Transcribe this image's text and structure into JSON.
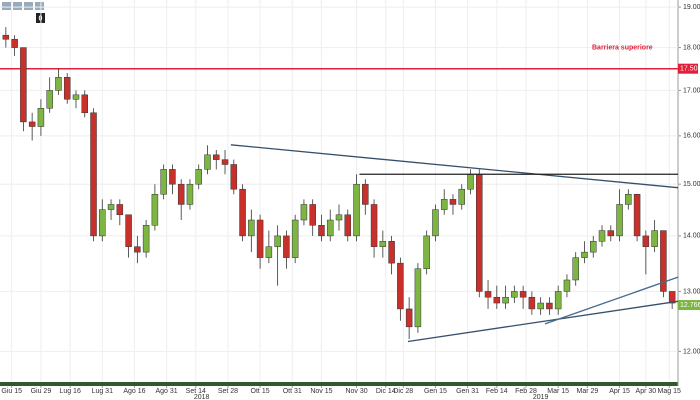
{
  "toolbar_badge": "0",
  "chart_data": {
    "type": "candlestick",
    "x": [
      2,
      5,
      8,
      11,
      14,
      17,
      20,
      23,
      26,
      29,
      32,
      35,
      38,
      41,
      44,
      47,
      50,
      53,
      56,
      59,
      62,
      65,
      68,
      71,
      74,
      77,
      80,
      83,
      86,
      89,
      92,
      95,
      98,
      101,
      104,
      107,
      110,
      113,
      116,
      119,
      122,
      125,
      128,
      131,
      134,
      137,
      140,
      143,
      146,
      149,
      152,
      155,
      158,
      161,
      164,
      167,
      170,
      173,
      176,
      179,
      182,
      185,
      188,
      191,
      194,
      197,
      200,
      203,
      206,
      209,
      212,
      215,
      218,
      221,
      224,
      227,
      230
    ],
    "open": [
      18.3,
      18.2,
      18.0,
      16.3,
      16.2,
      16.6,
      17.0,
      17.3,
      16.8,
      16.9,
      16.5,
      14.0,
      14.5,
      14.6,
      14.4,
      13.8,
      13.7,
      14.2,
      14.8,
      15.3,
      15.0,
      14.6,
      15.0,
      15.3,
      15.6,
      15.5,
      15.4,
      14.9,
      14.0,
      14.3,
      13.6,
      13.8,
      14.0,
      13.6,
      14.3,
      14.6,
      14.2,
      14.0,
      14.3,
      14.4,
      14.0,
      15.0,
      14.6,
      13.8,
      13.9,
      13.5,
      12.7,
      12.4,
      13.4,
      14.0,
      14.5,
      14.7,
      14.6,
      14.9,
      15.2,
      13.0,
      12.9,
      12.8,
      12.9,
      13.0,
      12.9,
      12.7,
      12.8,
      12.7,
      13.0,
      13.2,
      13.6,
      13.7,
      13.9,
      14.1,
      14.0,
      14.6,
      14.8,
      14.0,
      13.8,
      14.1,
      13.0
    ],
    "high": [
      18.5,
      18.3,
      18.0,
      16.5,
      16.8,
      17.3,
      17.5,
      17.4,
      17.0,
      17.0,
      16.6,
      14.7,
      14.7,
      14.7,
      14.4,
      14.0,
      14.3,
      15.0,
      15.4,
      15.4,
      15.1,
      15.1,
      15.4,
      15.8,
      15.7,
      15.7,
      15.5,
      15.0,
      14.5,
      14.4,
      14.1,
      14.2,
      14.1,
      14.4,
      14.7,
      14.7,
      14.4,
      14.5,
      14.6,
      14.5,
      15.2,
      15.1,
      14.7,
      14.1,
      14.0,
      13.6,
      12.9,
      13.5,
      14.1,
      14.6,
      14.9,
      14.8,
      15.0,
      15.3,
      15.3,
      13.2,
      13.1,
      13.1,
      13.1,
      13.1,
      13.0,
      12.9,
      12.9,
      13.1,
      13.3,
      13.7,
      13.9,
      14.0,
      14.2,
      14.2,
      14.9,
      14.9,
      14.8,
      14.1,
      14.3,
      14.1,
      13.0
    ],
    "low": [
      18.0,
      17.8,
      16.1,
      15.9,
      16.0,
      16.5,
      16.9,
      16.7,
      16.6,
      16.4,
      13.9,
      13.9,
      14.3,
      14.2,
      13.6,
      13.5,
      13.6,
      14.1,
      14.7,
      14.8,
      14.3,
      14.5,
      14.9,
      15.2,
      15.3,
      15.2,
      14.8,
      13.9,
      13.7,
      13.4,
      13.5,
      13.1,
      13.4,
      13.5,
      14.2,
      14.0,
      13.9,
      13.9,
      14.1,
      13.9,
      13.9,
      14.4,
      13.6,
      13.6,
      13.3,
      12.5,
      12.2,
      12.3,
      13.3,
      13.9,
      14.4,
      14.4,
      14.5,
      14.8,
      12.9,
      12.7,
      12.7,
      12.7,
      12.8,
      12.7,
      12.6,
      12.6,
      12.6,
      12.6,
      12.9,
      13.1,
      13.5,
      13.6,
      13.8,
      13.9,
      13.9,
      14.5,
      13.9,
      13.3,
      13.7,
      12.9,
      12.7
    ],
    "close": [
      18.2,
      18.0,
      16.3,
      16.2,
      16.6,
      17.0,
      17.3,
      16.8,
      16.9,
      16.5,
      14.0,
      14.5,
      14.6,
      14.4,
      13.8,
      13.7,
      14.2,
      14.8,
      15.3,
      15.0,
      14.6,
      15.0,
      15.3,
      15.6,
      15.5,
      15.4,
      14.9,
      14.0,
      14.3,
      13.6,
      13.8,
      14.0,
      13.6,
      14.3,
      14.6,
      14.2,
      14.0,
      14.3,
      14.4,
      14.0,
      15.0,
      14.6,
      13.8,
      13.9,
      13.5,
      12.7,
      12.4,
      13.4,
      14.0,
      14.5,
      14.7,
      14.6,
      14.9,
      15.2,
      13.0,
      12.9,
      12.8,
      12.9,
      13.0,
      12.9,
      12.7,
      12.8,
      12.7,
      13.0,
      13.2,
      13.6,
      13.7,
      13.9,
      14.1,
      14.0,
      14.6,
      14.8,
      14.0,
      13.8,
      14.1,
      13.0,
      12.8
    ],
    "up_color": "#7db543",
    "down_color": "#c8302c",
    "xlim": [
      0,
      232
    ],
    "xticks": [
      {
        "value": 4,
        "label": "Giu 15"
      },
      {
        "value": 14,
        "label": "Giu 29"
      },
      {
        "value": 24,
        "label": "Lug 16"
      },
      {
        "value": 35,
        "label": "Lug 31"
      },
      {
        "value": 46,
        "label": "Ago 16"
      },
      {
        "value": 57,
        "label": "Ago 31"
      },
      {
        "value": 67,
        "label": "Set 14"
      },
      {
        "value": 78,
        "label": "Set 28"
      },
      {
        "value": 89,
        "label": "Ott 15"
      },
      {
        "value": 100,
        "label": "Ott 31"
      },
      {
        "value": 110,
        "label": "Nov 15"
      },
      {
        "value": 122,
        "label": "Nov 30"
      },
      {
        "value": 132,
        "label": "Dic 14"
      },
      {
        "value": 138,
        "label": "Dic 28"
      },
      {
        "value": 149,
        "label": "Gen 15"
      },
      {
        "value": 160,
        "label": "Gen 31"
      },
      {
        "value": 170,
        "label": "Feb 14"
      },
      {
        "value": 180,
        "label": "Feb 28"
      },
      {
        "value": 191,
        "label": "Mar 15"
      },
      {
        "value": 201,
        "label": "Mar 29"
      },
      {
        "value": 212,
        "label": "Apr 15"
      },
      {
        "value": 221,
        "label": "Apr 30"
      },
      {
        "value": 229,
        "label": "Mag 15"
      }
    ],
    "years": [
      {
        "value": 69,
        "label": "2018"
      },
      {
        "value": 185,
        "label": "2019"
      }
    ],
    "ylim": [
      11.52,
      19.18
    ],
    "log_scale": true,
    "yticks": [
      {
        "value": 12,
        "label": "12.00"
      },
      {
        "value": 13,
        "label": "13.00"
      },
      {
        "value": 14,
        "label": "14.00"
      },
      {
        "value": 15,
        "label": "15.00"
      },
      {
        "value": 16,
        "label": "16.00"
      },
      {
        "value": 17,
        "label": "17.00"
      },
      {
        "value": 18,
        "label": "18.00"
      },
      {
        "value": 19,
        "label": "19.00"
      }
    ],
    "grid": true,
    "barrier": {
      "name": "Barriera superiore",
      "value": 17.5,
      "label": "17.50",
      "color": "#e0203a"
    },
    "last_price": 12.766,
    "last_price_color": "#7db543",
    "lines": [
      {
        "x": [
          79,
          232
        ],
        "y": [
          15.81,
          14.93
        ],
        "color": "#34506b"
      },
      {
        "x": [
          139.6,
          232
        ],
        "y": [
          12.16,
          12.83
        ],
        "color": "#34506b"
      },
      {
        "x": [
          186.5,
          232
        ],
        "y": [
          12.45,
          13.25
        ],
        "color": "#4a6a8a"
      },
      {
        "x": [
          123,
          232
        ],
        "y": [
          15.2,
          15.2
        ],
        "color": "#222222"
      }
    ]
  }
}
